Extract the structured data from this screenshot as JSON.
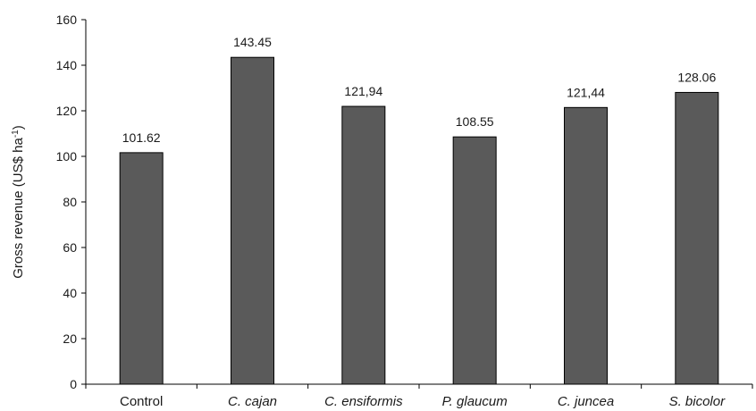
{
  "chart_data": {
    "type": "bar",
    "categories": [
      "Control",
      "C. cajan",
      "C. ensiformis",
      "P. glaucum",
      "C. juncea",
      "S. bicolor"
    ],
    "italic_categories": [
      false,
      true,
      true,
      true,
      true,
      true
    ],
    "values": [
      101.62,
      143.45,
      121.94,
      108.55,
      121.44,
      128.06
    ],
    "data_labels": [
      "101.62",
      "143.45",
      "121,94",
      "108.55",
      "121,44",
      "128.06"
    ],
    "ylabel": {
      "main": "Gross revenue (US$ ha",
      "sup": "-1",
      "close": ")"
    },
    "yticks": [
      "0",
      "20",
      "40",
      "60",
      "80",
      "100",
      "120",
      "140",
      "160"
    ],
    "ylim": [
      0,
      160
    ],
    "grid": false,
    "bar_color": "#5a5a5a",
    "bar_edge_color": "#000000",
    "axis_color": "#000000"
  }
}
